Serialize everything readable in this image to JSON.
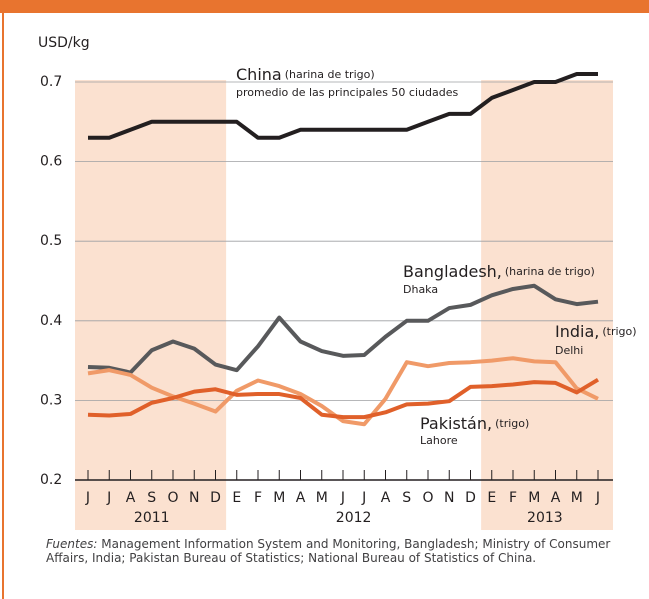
{
  "chart_data": {
    "type": "line",
    "y_label": "USD/kg",
    "categories": [
      "J",
      "J",
      "A",
      "S",
      "O",
      "N",
      "D",
      "E",
      "F",
      "M",
      "A",
      "M",
      "J",
      "J",
      "A",
      "S",
      "O",
      "N",
      "D",
      "E",
      "F",
      "M",
      "A",
      "M",
      "J"
    ],
    "years": [
      "2011",
      "2012",
      "2013"
    ],
    "ylim": [
      0.2,
      0.7
    ],
    "yticks": [
      0.2,
      0.3,
      0.4,
      0.5,
      0.6,
      0.7
    ],
    "grid": true,
    "series": [
      {
        "name": "China",
        "note": "(harina de trigo)",
        "place": "promedio de las principales 50 ciudades",
        "color": "#231f20",
        "values": [
          0.63,
          0.63,
          0.64,
          0.65,
          0.65,
          0.65,
          0.65,
          0.65,
          0.63,
          0.63,
          0.64,
          0.64,
          0.64,
          0.64,
          0.64,
          0.64,
          0.65,
          0.66,
          0.66,
          0.68,
          0.69,
          0.7,
          0.7,
          0.71,
          0.71
        ]
      },
      {
        "name": "Bangladesh,",
        "note": "(harina de trigo)",
        "place": "Dhaka",
        "color": "#58595b",
        "values": [
          0.342,
          0.341,
          0.335,
          0.363,
          0.374,
          0.365,
          0.345,
          0.338,
          0.368,
          0.404,
          0.374,
          0.362,
          0.356,
          0.357,
          0.38,
          0.4,
          0.4,
          0.416,
          0.42,
          0.432,
          0.44,
          0.444,
          0.427,
          0.421,
          0.424
        ]
      },
      {
        "name": "India,",
        "note": "(trigo)",
        "place": "Delhi",
        "color": "#f09a68",
        "values": [
          0.334,
          0.338,
          0.332,
          0.316,
          0.305,
          0.296,
          0.286,
          0.312,
          0.325,
          0.318,
          0.308,
          0.293,
          0.274,
          0.27,
          0.302,
          0.348,
          0.343,
          0.347,
          0.348,
          0.35,
          0.353,
          0.349,
          0.348,
          0.315,
          0.302
        ]
      },
      {
        "name": "Pakistán,",
        "note": "(trigo)",
        "place": "Lahore",
        "color": "#e0602a",
        "values": [
          0.282,
          0.281,
          0.283,
          0.297,
          0.303,
          0.311,
          0.314,
          0.307,
          0.308,
          0.308,
          0.303,
          0.282,
          0.279,
          0.279,
          0.285,
          0.295,
          0.296,
          0.299,
          0.317,
          0.318,
          0.32,
          0.323,
          0.322,
          0.31,
          0.326
        ]
      }
    ],
    "source": {
      "lead": "Fuentes:",
      "text": "Management Information System and Monitoring, Bangladesh; Ministry of Consumer Affairs, India; Pakistan Bureau of Statistics; National Bureau of Statistics of China."
    }
  }
}
